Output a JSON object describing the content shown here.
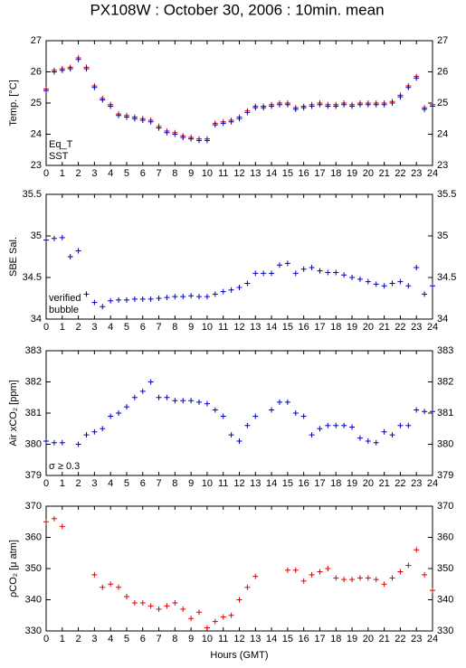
{
  "title": "PX108W : October 30, 2006 : 10min. mean",
  "chart_data": [
    {
      "type": "scatter",
      "ylabel": "Temp. [°C]",
      "x": [
        0,
        0.5,
        1,
        1.5,
        2,
        2.5,
        3,
        3.5,
        4,
        4.5,
        5,
        5.5,
        6,
        6.5,
        7,
        7.5,
        8,
        8.5,
        9,
        9.5,
        10,
        10.5,
        11,
        11.5,
        12,
        12.5,
        13,
        13.5,
        14,
        14.5,
        15,
        15.5,
        16,
        16.5,
        17,
        17.5,
        18,
        18.5,
        19,
        19.5,
        20,
        20.5,
        21,
        21.5,
        22,
        22.5,
        23,
        23.5,
        24
      ],
      "series": [
        {
          "name": "Eq_T",
          "color": "#e00000",
          "values": [
            25.45,
            26.05,
            26.1,
            26.15,
            26.45,
            26.15,
            25.55,
            25.15,
            24.95,
            24.65,
            24.6,
            24.55,
            24.5,
            24.45,
            24.25,
            24.1,
            24.05,
            23.95,
            23.9,
            23.85,
            23.85,
            24.35,
            24.4,
            24.45,
            24.55,
            24.75,
            24.9,
            24.9,
            24.95,
            25.0,
            25.0,
            24.85,
            24.9,
            24.95,
            25.0,
            24.95,
            24.95,
            25.0,
            24.95,
            25.0,
            25.0,
            25.0,
            25.0,
            25.05,
            25.25,
            25.55,
            25.85,
            24.85,
            24.95
          ]
        },
        {
          "name": "SST",
          "color": "#0000c0",
          "values": [
            25.4,
            26.0,
            26.05,
            26.1,
            26.4,
            26.1,
            25.5,
            25.1,
            24.9,
            24.6,
            24.55,
            24.5,
            24.45,
            24.4,
            24.2,
            24.05,
            24.0,
            23.9,
            23.85,
            23.8,
            23.8,
            24.3,
            24.35,
            24.4,
            24.5,
            24.7,
            24.85,
            24.85,
            24.9,
            24.95,
            24.95,
            24.8,
            24.85,
            24.9,
            24.95,
            24.9,
            24.9,
            24.95,
            24.9,
            24.95,
            24.95,
            24.95,
            24.95,
            25.0,
            25.2,
            25.5,
            25.8,
            24.8,
            24.9
          ]
        }
      ],
      "xlim": [
        0,
        24
      ],
      "xticks": [
        0,
        1,
        2,
        3,
        4,
        5,
        6,
        7,
        8,
        9,
        10,
        11,
        12,
        13,
        14,
        15,
        16,
        17,
        18,
        19,
        20,
        21,
        22,
        23,
        24
      ],
      "ylim": [
        23,
        27
      ],
      "yticks": [
        23,
        24,
        25,
        26,
        27
      ]
    },
    {
      "type": "scatter",
      "ylabel": "SBE Sal.",
      "x": [
        0,
        0.5,
        1,
        1.5,
        2,
        2.5,
        3,
        3.5,
        4,
        4.5,
        5,
        5.5,
        6,
        6.5,
        7,
        7.5,
        8,
        8.5,
        9,
        9.5,
        10,
        10.5,
        11,
        11.5,
        12,
        12.5,
        13,
        13.5,
        14,
        14.5,
        15,
        15.5,
        16,
        16.5,
        17,
        17.5,
        18,
        18.5,
        19,
        19.5,
        20,
        20.5,
        21,
        21.5,
        22,
        22.5,
        23,
        23.5,
        24
      ],
      "series": [
        {
          "name": "verified",
          "color": "#0000c0",
          "values": [
            34.95,
            34.97,
            34.98,
            34.75,
            34.82,
            34.3,
            34.2,
            34.15,
            34.22,
            34.23,
            34.23,
            34.24,
            34.24,
            34.24,
            34.25,
            34.26,
            34.27,
            34.27,
            34.28,
            34.27,
            34.27,
            34.3,
            34.33,
            34.35,
            34.38,
            34.43,
            34.55,
            34.55,
            34.55,
            34.65,
            34.67,
            34.55,
            34.6,
            34.62,
            34.58,
            34.56,
            34.56,
            34.53,
            34.5,
            34.48,
            34.45,
            34.42,
            34.4,
            34.43,
            34.45,
            34.4,
            34.62,
            34.3,
            34.4
          ]
        }
      ],
      "annotations": [
        {
          "text": "bubble",
          "color": "#cc00cc"
        }
      ],
      "xlim": [
        0,
        24
      ],
      "xticks": [
        0,
        1,
        2,
        3,
        4,
        5,
        6,
        7,
        8,
        9,
        10,
        11,
        12,
        13,
        14,
        15,
        16,
        17,
        18,
        19,
        20,
        21,
        22,
        23,
        24
      ],
      "ylim": [
        34,
        35.5
      ],
      "yticks": [
        34,
        34.5,
        35,
        35.5
      ]
    },
    {
      "type": "scatter",
      "ylabel": "Air xCO₂ [ppm]",
      "x": [
        0,
        0.5,
        1,
        1.5,
        2,
        2.5,
        3,
        3.5,
        4,
        4.5,
        5,
        5.5,
        6,
        6.5,
        7,
        7.5,
        8,
        8.5,
        9,
        9.5,
        10,
        10.5,
        11,
        11.5,
        12,
        12.5,
        13,
        13.5,
        14,
        14.5,
        15,
        15.5,
        16,
        16.5,
        17,
        17.5,
        18,
        18.5,
        19,
        19.5,
        20,
        20.5,
        21,
        21.5,
        22,
        22.5,
        23,
        23.5,
        24
      ],
      "series": [
        {
          "color": "#0000c0",
          "values": [
            380.1,
            380.05,
            380.05,
            null,
            380.0,
            380.3,
            380.4,
            380.5,
            380.9,
            381.0,
            381.2,
            381.5,
            381.7,
            382.0,
            381.5,
            381.5,
            381.4,
            381.4,
            381.4,
            381.35,
            381.3,
            381.1,
            380.9,
            380.3,
            380.1,
            380.6,
            380.9,
            null,
            381.1,
            381.35,
            381.35,
            381.0,
            380.9,
            380.3,
            380.5,
            380.6,
            380.6,
            380.6,
            380.55,
            380.2,
            380.1,
            380.05,
            380.4,
            380.3,
            380.6,
            380.6,
            381.1,
            381.05,
            381.05
          ]
        }
      ],
      "annotations": [
        {
          "text": "σ ≥ 0.3",
          "color": "#cc00cc"
        }
      ],
      "xlim": [
        0,
        24
      ],
      "xticks": [
        0,
        1,
        2,
        3,
        4,
        5,
        6,
        7,
        8,
        9,
        10,
        11,
        12,
        13,
        14,
        15,
        16,
        17,
        18,
        19,
        20,
        21,
        22,
        23,
        24
      ],
      "ylim": [
        379,
        383
      ],
      "yticks": [
        379,
        380,
        381,
        382,
        383
      ]
    },
    {
      "type": "scatter",
      "ylabel": "ρCO₂ [μ atm]",
      "xlabel": "Hours (GMT)",
      "x": [
        0,
        0.5,
        1,
        1.5,
        2,
        2.5,
        3,
        3.5,
        4,
        4.5,
        5,
        5.5,
        6,
        6.5,
        7,
        7.5,
        8,
        8.5,
        9,
        9.5,
        10,
        10.5,
        11,
        11.5,
        12,
        12.5,
        13,
        13.5,
        14,
        14.5,
        15,
        15.5,
        16,
        16.5,
        17,
        17.5,
        18,
        18.5,
        19,
        19.5,
        20,
        20.5,
        21,
        21.5,
        22,
        22.5,
        23,
        23.5,
        24
      ],
      "series": [
        {
          "color": "#e00000",
          "values": [
            365,
            366,
            363.5,
            null,
            null,
            null,
            348,
            344,
            345,
            344,
            341,
            339,
            339,
            338,
            337,
            338,
            339,
            337,
            334,
            336,
            331,
            333,
            334.5,
            335,
            340,
            344,
            347.5,
            null,
            null,
            null,
            349.5,
            349.5,
            346,
            348,
            349,
            350,
            347,
            346.5,
            346.5,
            347,
            347,
            346.5,
            345,
            347,
            349,
            351,
            356,
            348,
            343
          ]
        }
      ],
      "xlim": [
        0,
        24
      ],
      "xticks": [
        0,
        1,
        2,
        3,
        4,
        5,
        6,
        7,
        8,
        9,
        10,
        11,
        12,
        13,
        14,
        15,
        16,
        17,
        18,
        19,
        20,
        21,
        22,
        23,
        24
      ],
      "ylim": [
        330,
        370
      ],
      "yticks": [
        330,
        340,
        350,
        360,
        370
      ]
    }
  ]
}
